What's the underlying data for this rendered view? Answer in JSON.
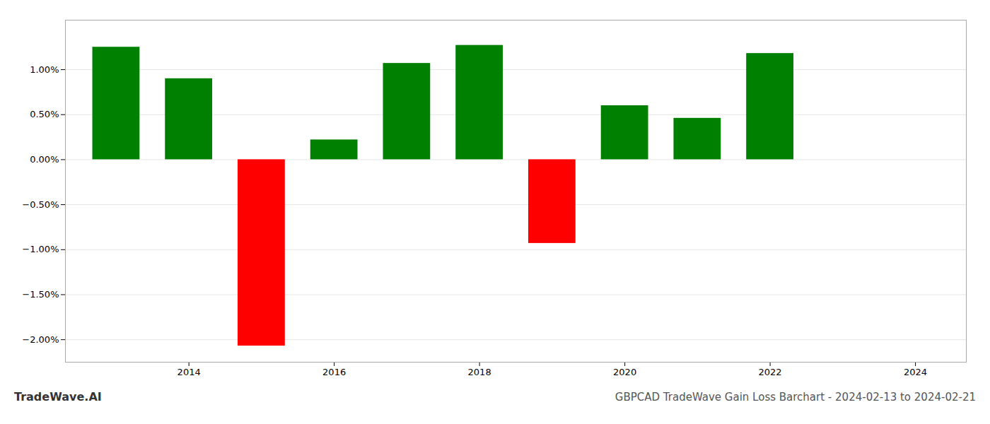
{
  "chart_data": {
    "type": "bar",
    "title": "GBPCAD TradeWave Gain Loss Barchart - 2024-02-13 to 2024-02-21",
    "annotations": [
      "TradeWave.AI"
    ],
    "x": [
      2013,
      2014,
      2015,
      2016,
      2017,
      2018,
      2019,
      2020,
      2021,
      2022,
      2023
    ],
    "values": [
      1.25,
      0.9,
      -2.07,
      0.22,
      1.07,
      1.27,
      -0.93,
      0.6,
      0.46,
      1.18,
      0.0
    ],
    "colors": [
      "#008000",
      "#008000",
      "#ff0000",
      "#008000",
      "#008000",
      "#008000",
      "#ff0000",
      "#008000",
      "#008000",
      "#008000",
      "#008000"
    ],
    "xlim": [
      2012.3,
      2024.7
    ],
    "xticks": [
      2014,
      2016,
      2018,
      2020,
      2022,
      2024
    ],
    "ylim": [
      -2.25,
      1.55
    ],
    "yticks": [
      {
        "value": -2.0,
        "label": "−2.00%"
      },
      {
        "value": -1.5,
        "label": "−1.50%"
      },
      {
        "value": -1.0,
        "label": "−1.00%"
      },
      {
        "value": -0.5,
        "label": "−0.50%"
      },
      {
        "value": 0.0,
        "label": "0.00%"
      },
      {
        "value": 0.5,
        "label": "0.50%"
      },
      {
        "value": 1.0,
        "label": "1.00%"
      }
    ],
    "grid": true
  }
}
